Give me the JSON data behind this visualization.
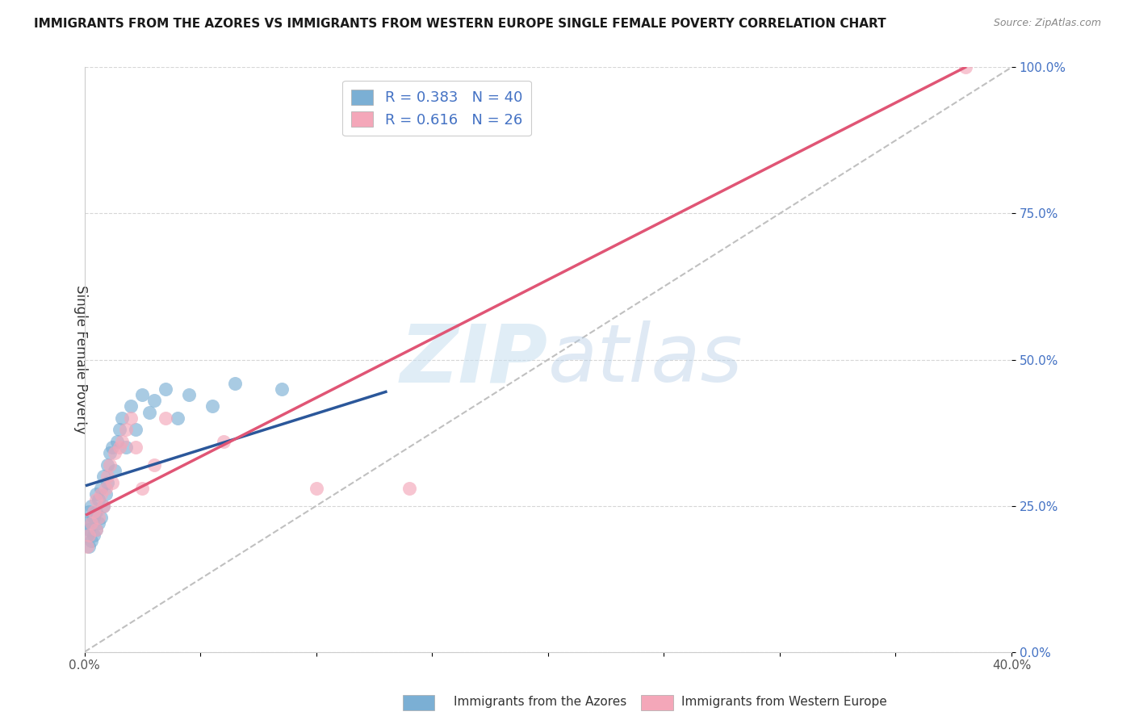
{
  "title": "IMMIGRANTS FROM THE AZORES VS IMMIGRANTS FROM WESTERN EUROPE SINGLE FEMALE POVERTY CORRELATION CHART",
  "source": "Source: ZipAtlas.com",
  "ylabel": "Single Female Poverty",
  "legend_label1": "Immigrants from the Azores",
  "legend_label2": "Immigrants from Western Europe",
  "R1": 0.383,
  "N1": 40,
  "R2": 0.616,
  "N2": 26,
  "xlim": [
    0.0,
    0.4
  ],
  "ylim": [
    0.0,
    1.0
  ],
  "xtick_left_label": "0.0%",
  "xtick_right_label": "40.0%",
  "ytick_labels": [
    "0.0%",
    "25.0%",
    "50.0%",
    "75.0%",
    "100.0%"
  ],
  "ytick_values": [
    0.0,
    0.25,
    0.5,
    0.75,
    1.0
  ],
  "color_azores": "#7bafd4",
  "color_western": "#f4a7b9",
  "line_color_azores": "#2b579a",
  "line_color_western": "#e05575",
  "ref_line_color": "#c0c0c0",
  "background_color": "#ffffff",
  "ytick_color": "#4472c4",
  "xtick_color": "#555555",
  "azores_x": [
    0.001,
    0.001,
    0.002,
    0.002,
    0.002,
    0.003,
    0.003,
    0.003,
    0.004,
    0.004,
    0.005,
    0.005,
    0.005,
    0.006,
    0.006,
    0.007,
    0.007,
    0.008,
    0.008,
    0.009,
    0.01,
    0.01,
    0.011,
    0.012,
    0.013,
    0.014,
    0.015,
    0.016,
    0.018,
    0.02,
    0.022,
    0.025,
    0.028,
    0.03,
    0.035,
    0.04,
    0.045,
    0.055,
    0.065,
    0.085
  ],
  "azores_y": [
    0.2,
    0.22,
    0.18,
    0.21,
    0.24,
    0.19,
    0.22,
    0.25,
    0.2,
    0.23,
    0.21,
    0.24,
    0.27,
    0.22,
    0.26,
    0.23,
    0.28,
    0.25,
    0.3,
    0.27,
    0.32,
    0.29,
    0.34,
    0.35,
    0.31,
    0.36,
    0.38,
    0.4,
    0.35,
    0.42,
    0.38,
    0.44,
    0.41,
    0.43,
    0.45,
    0.4,
    0.44,
    0.42,
    0.46,
    0.45
  ],
  "western_x": [
    0.001,
    0.002,
    0.003,
    0.004,
    0.005,
    0.005,
    0.006,
    0.007,
    0.008,
    0.009,
    0.01,
    0.011,
    0.012,
    0.013,
    0.015,
    0.016,
    0.018,
    0.02,
    0.022,
    0.025,
    0.03,
    0.035,
    0.06,
    0.1,
    0.14,
    0.38
  ],
  "western_y": [
    0.18,
    0.2,
    0.22,
    0.24,
    0.21,
    0.26,
    0.23,
    0.27,
    0.25,
    0.28,
    0.3,
    0.32,
    0.29,
    0.34,
    0.35,
    0.36,
    0.38,
    0.4,
    0.35,
    0.28,
    0.32,
    0.4,
    0.36,
    0.28,
    0.28,
    1.0
  ],
  "blue_line_x": [
    0.001,
    0.13
  ],
  "blue_line_y": [
    0.285,
    0.445
  ],
  "pink_line_x": [
    0.001,
    0.38
  ],
  "pink_line_y": [
    0.235,
    1.0
  ]
}
